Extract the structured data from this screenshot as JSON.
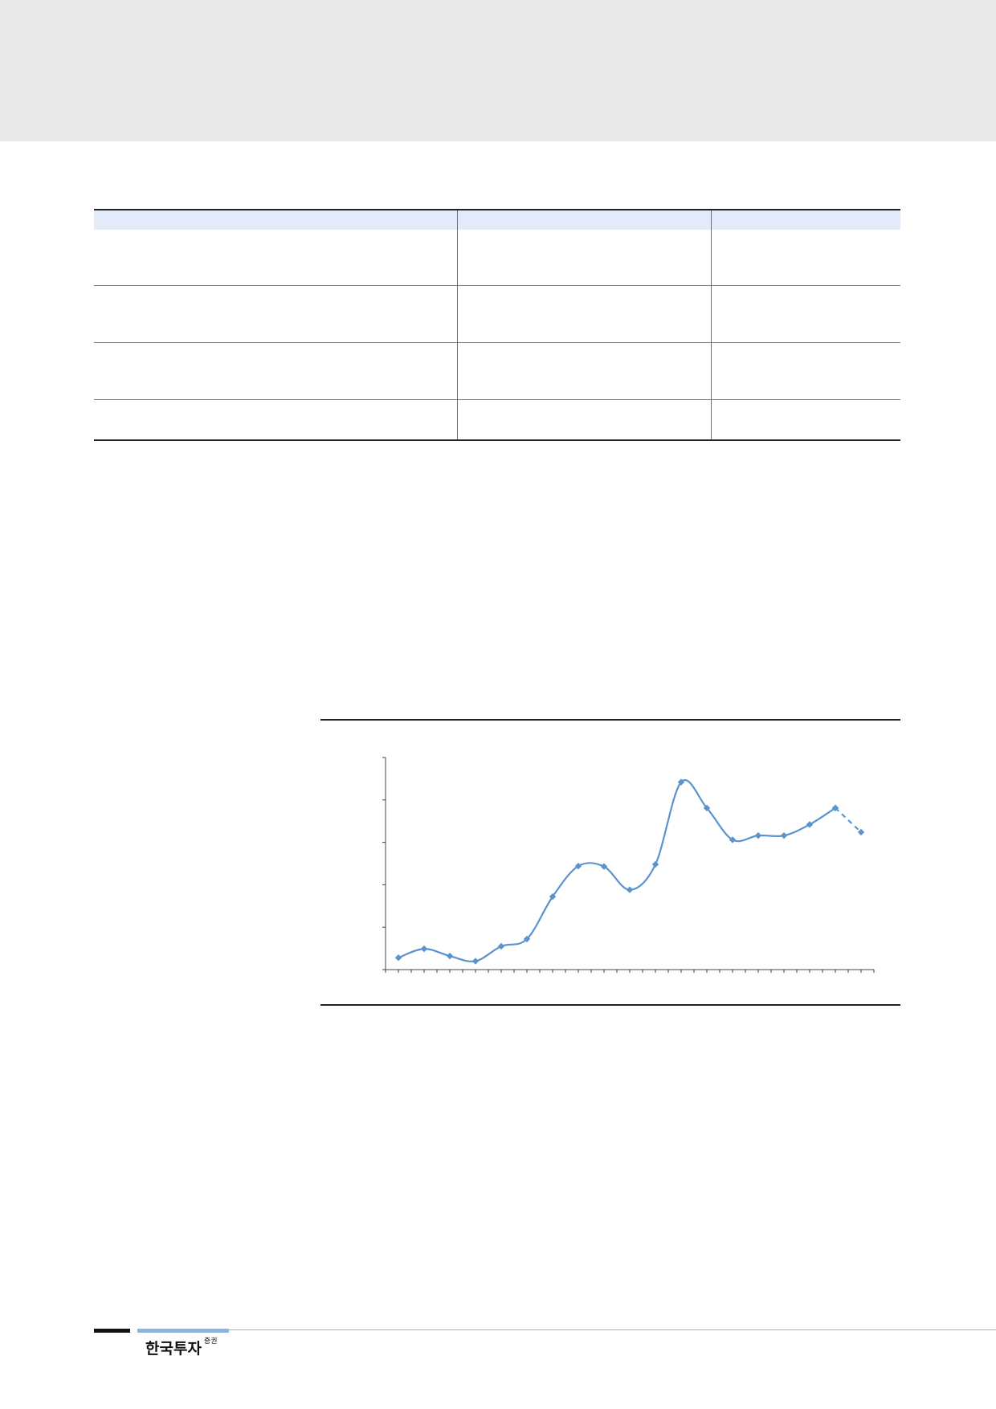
{
  "footer": {
    "logo_text": "한국투자",
    "logo_suffix": "증권"
  },
  "chart_data": {
    "type": "line",
    "title": "",
    "xlabel": "",
    "ylabel": "",
    "axis_labels_visible": false,
    "grid": false,
    "ylim": [
      0,
      50
    ],
    "x": [
      1,
      2,
      3,
      4,
      5,
      6,
      7,
      8,
      9,
      10,
      11,
      12,
      13,
      14,
      15,
      16,
      17,
      18,
      19
    ],
    "series": [
      {
        "style": "solid",
        "color": "#5b93cf",
        "marker": "diamond",
        "x": [
          1,
          2,
          3,
          4,
          5,
          6,
          7,
          8,
          9,
          10,
          11,
          12,
          13,
          14,
          15,
          16,
          17,
          18
        ],
        "values": [
          2.8,
          4.9,
          3.2,
          2.0,
          5.5,
          7.2,
          17.2,
          24.4,
          24.3,
          18.8,
          24.8,
          44.2,
          38.1,
          30.6,
          31.6,
          31.6,
          34.2,
          38.1
        ]
      },
      {
        "style": "dashed",
        "color": "#5b93cf",
        "marker": "diamond",
        "x": [
          18,
          19
        ],
        "values": [
          38.1,
          32.4
        ]
      }
    ]
  }
}
